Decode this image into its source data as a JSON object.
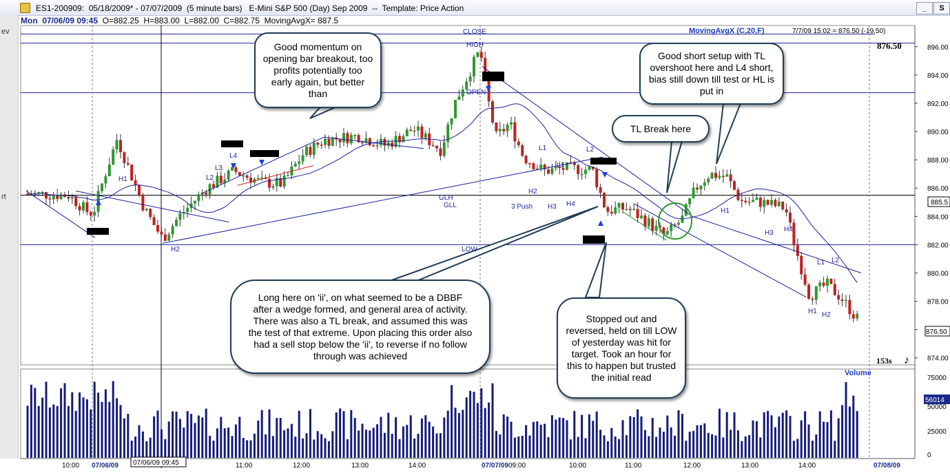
{
  "window": {
    "title": "ES1-200909:  05/18/2009* - 07/07/2009  (5 minute bars)   E-Mini S&P 500 (Day) Sep 2009  --  Template: Price Action",
    "buttons": [
      "_",
      "S",
      "P"
    ]
  },
  "info": {
    "date": "Mon  07/06/09 09:45",
    "ohlc": "  O=882.25  H=883.00  L=882.00  C=882.75  MovingAvgX= 887.5"
  },
  "left_strip_letters": [
    "ev",
    "rt"
  ],
  "indicator": {
    "label": "MovingAvgX (C,20,F)",
    "status": "7/7/09 15:02 = 876.50 (-19.50)",
    "last_price": "876.50",
    "price_tag": "876.50",
    "crosshair_price": "885.5",
    "bar_count": "153s",
    "volume_label": "Volume",
    "volume_tag": "56014"
  },
  "chart_data": {
    "type": "candlestick",
    "y_axis_ticks": [
      "896.00",
      "894.00",
      "892.00",
      "890.00",
      "888.00",
      "886.00",
      "884.00",
      "882.00",
      "880.00",
      "878.00",
      "876.00",
      "874.00"
    ],
    "ylim": [
      873.5,
      897.5
    ],
    "volume_ticks": [
      "75000",
      "50000",
      "25000",
      "0"
    ],
    "volume_ylim": [
      0,
      80000
    ],
    "x_ticks": [
      "10:00",
      "07/06/09",
      "07/06/09 09:45",
      "11:00",
      "12:00",
      "13:00",
      "14:00",
      "07/07/09",
      "09:00",
      "10:00",
      "11:00",
      "12:00",
      "13:00",
      "14:00",
      "07/08/09"
    ],
    "horizontal_levels": [
      {
        "name": "CLOSE/HIGH",
        "value": 896.25
      },
      {
        "name": "upper",
        "value": 892.75
      },
      {
        "name": "crosshair",
        "value": 885.5
      },
      {
        "name": "LOW",
        "value": 882.0
      }
    ],
    "annotations": [
      "CLOSE",
      "HIGH",
      "OPEN",
      "GLH",
      "GLL",
      "LOW",
      "H1",
      "H2",
      "L2",
      "L3",
      "L4",
      "L1",
      "3 Push",
      "H3",
      "H4",
      "H1",
      "H3",
      "H4",
      "L1",
      "L2",
      "H1",
      "H2",
      "L1",
      "L2",
      "H2"
    ],
    "price_series": [
      {
        "o": 885.5,
        "h": 886.0,
        "l": 885.25,
        "c": 885.75
      },
      {
        "o": 885.75,
        "h": 886.25,
        "l": 885.5,
        "c": 886.0
      },
      {
        "o": 886.0,
        "h": 886.0,
        "l": 885.0,
        "c": 885.25
      },
      {
        "o": 885.25,
        "h": 885.5,
        "l": 884.75,
        "c": 885.0
      }
    ]
  },
  "callouts": {
    "momentum": "Good momentum on opening bar breakout, too profits potentially too early again, but better than",
    "short_setup": "Good short  setup with TL overshoot here and L4 short, bias still down till test or HL is put in",
    "tl_break": "TL Break here",
    "long_here": "Long here on 'ii', on what seemed to be a DBBF after a wedge formed, and general area of activity.  There was also a TL break, and assumed this was the test of that extreme.  Upon placing this order also had a sell stop below the 'ii', to reverse if no follow through was achieved",
    "stopped_out": "Stopped out and reversed, held on till LOW of yesterday was hit for target. Took an hour for this to happen but trusted the initial read"
  },
  "colors": {
    "bull": "#2d9a2d",
    "bear": "#c42020",
    "ma": "#1a1f9a",
    "trendline": "#1a1f9a",
    "volume": "#141b7a",
    "callout_border": "#1f3b56"
  }
}
